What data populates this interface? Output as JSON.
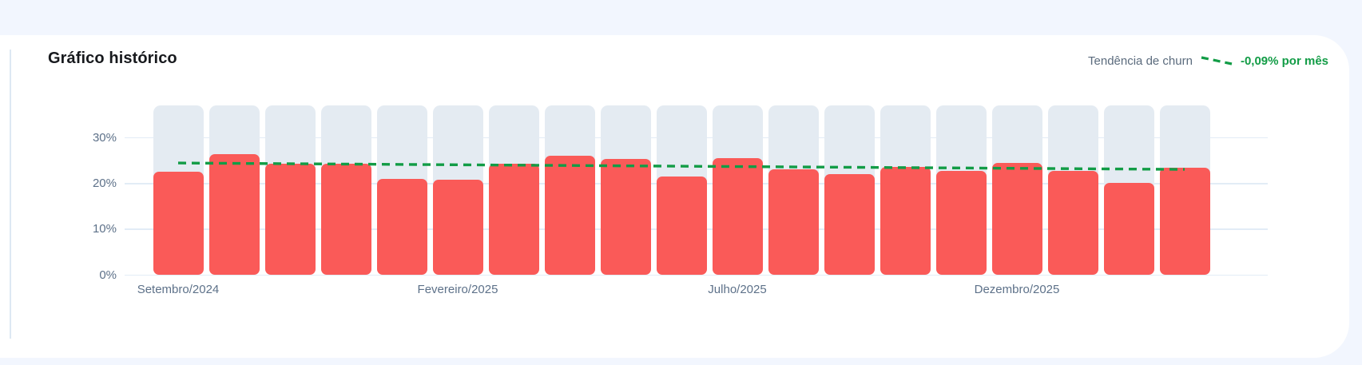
{
  "card": {
    "title": "Gráfico histórico"
  },
  "legend": {
    "label": "Tendência de churn",
    "value": "-0,09% por mês"
  },
  "chart_data": {
    "type": "bar",
    "title": "Gráfico histórico",
    "unit": "%",
    "values": [
      22.6,
      26.5,
      24.4,
      24.4,
      21.0,
      20.9,
      24.4,
      26.1,
      25.4,
      21.5,
      25.5,
      23.2,
      22.1,
      23.7,
      22.7,
      24.5,
      22.7,
      20.1,
      23.4
    ],
    "x_tick_labels": [
      {
        "index": 0,
        "label": "Setembro/2024"
      },
      {
        "index": 5,
        "label": "Fevereiro/2025"
      },
      {
        "index": 10,
        "label": "Julho/2025"
      },
      {
        "index": 15,
        "label": "Dezembro/2025"
      }
    ],
    "y_ticks": [
      {
        "value": 0,
        "label": "0%"
      },
      {
        "value": 10,
        "label": "10%"
      },
      {
        "value": 20,
        "label": "20%"
      },
      {
        "value": 30,
        "label": "30%"
      }
    ],
    "ylim": [
      0,
      37
    ],
    "background_bar_value": 37,
    "grid": true,
    "legend_position": "top-right",
    "trend": {
      "label": "Tendência de churn",
      "rate_label": "-0,09% por mês",
      "start_value": 24.5,
      "end_value": 23.1,
      "style": "dashed"
    },
    "colors": {
      "bar": "#fa5a58",
      "bar_background": "#e4ebf2",
      "trend": "#129c46",
      "grid": "#e2ecf6",
      "tick_label": "#5d7189",
      "legend_label": "#5b6b7d",
      "legend_value": "#129c46"
    }
  }
}
